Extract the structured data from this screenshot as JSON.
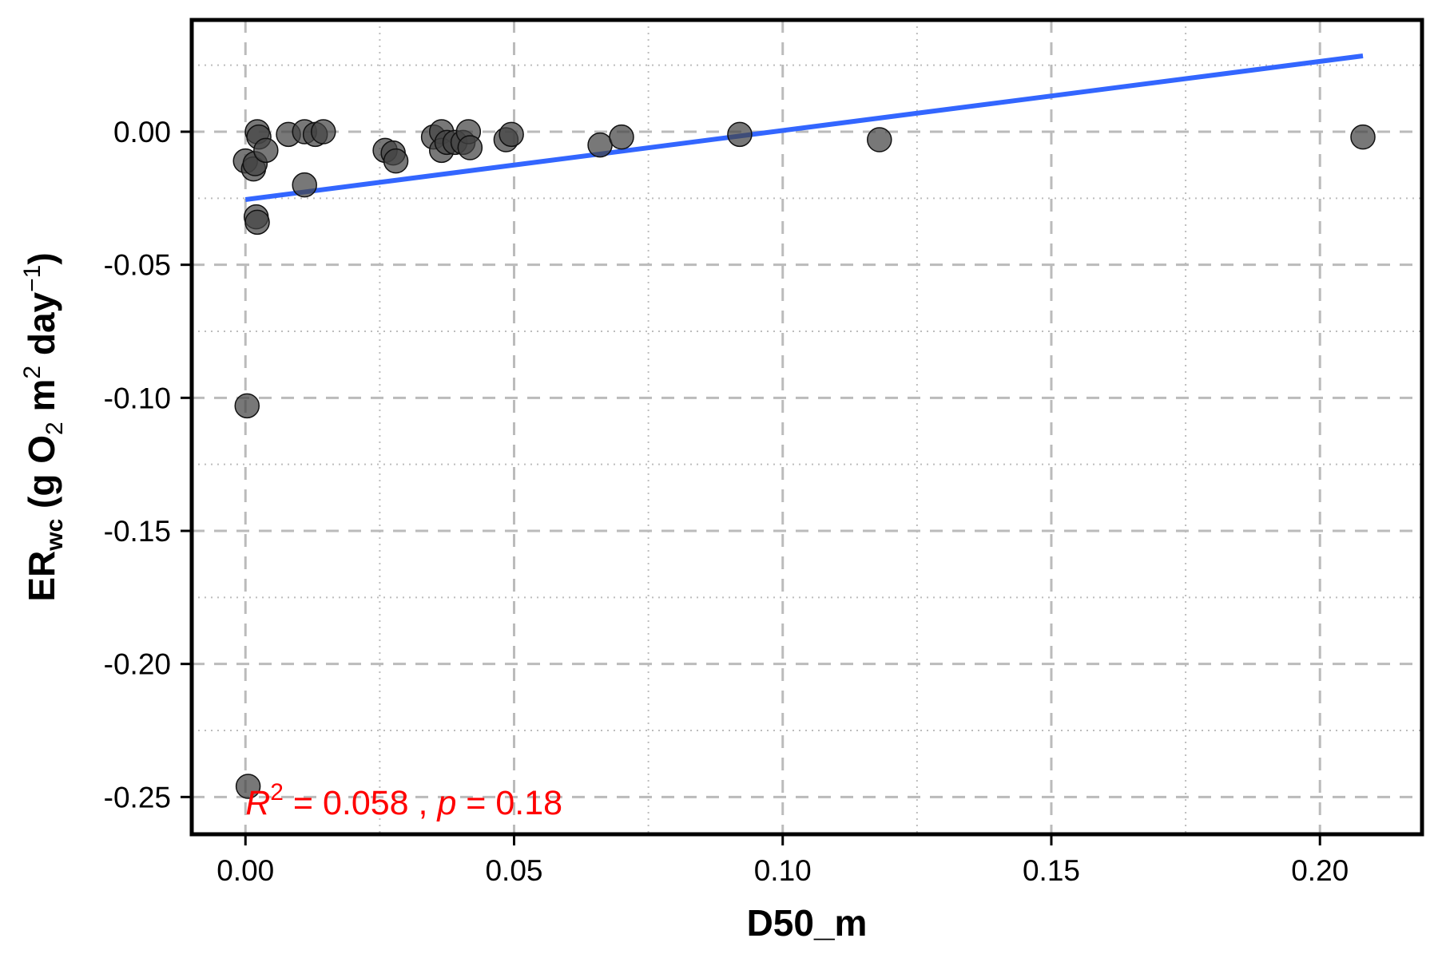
{
  "chart_data": {
    "type": "scatter",
    "xlabel": "D50_m",
    "ylabel": {
      "main": "ER",
      "subscript": "wc",
      "units_prefix": " (g O",
      "units_o2_subscript": "2",
      "units_m": " m",
      "units_m_superscript": "2",
      "units_day": " day",
      "units_day_superscript": "−1",
      "units_close": ")"
    },
    "xlim": [
      -0.01,
      0.219
    ],
    "ylim": [
      -0.264,
      0.042
    ],
    "x_ticks": [
      0.0,
      0.05,
      0.1,
      0.15,
      0.2
    ],
    "x_tick_labels": [
      "0.00",
      "0.05",
      "0.10",
      "0.15",
      "0.20"
    ],
    "y_ticks": [
      0.0,
      -0.05,
      -0.1,
      -0.15,
      -0.2,
      -0.25
    ],
    "y_tick_labels": [
      "0.00",
      "-0.05",
      "-0.10",
      "-0.15",
      "-0.20",
      "-0.25"
    ],
    "x_minor_ticks": [
      0.025,
      0.075,
      0.125,
      0.175
    ],
    "y_minor_ticks": [
      0.025,
      -0.025,
      -0.075,
      -0.125,
      -0.175,
      -0.225
    ],
    "grid": true,
    "points": [
      {
        "x": 0.0,
        "y": -0.011
      },
      {
        "x": 0.0003,
        "y": -0.103
      },
      {
        "x": 0.0005,
        "y": -0.246
      },
      {
        "x": 0.0015,
        "y": -0.014
      },
      {
        "x": 0.0018,
        "y": -0.012
      },
      {
        "x": 0.002,
        "y": -0.032
      },
      {
        "x": 0.0022,
        "y": -0.034
      },
      {
        "x": 0.0022,
        "y": 0.0
      },
      {
        "x": 0.0025,
        "y": -0.002
      },
      {
        "x": 0.0038,
        "y": -0.007
      },
      {
        "x": 0.008,
        "y": -0.001
      },
      {
        "x": 0.011,
        "y": 0.0
      },
      {
        "x": 0.011,
        "y": -0.02
      },
      {
        "x": 0.013,
        "y": -0.001
      },
      {
        "x": 0.0145,
        "y": 0.0
      },
      {
        "x": 0.026,
        "y": -0.007
      },
      {
        "x": 0.0275,
        "y": -0.008
      },
      {
        "x": 0.028,
        "y": -0.011
      },
      {
        "x": 0.035,
        "y": -0.002
      },
      {
        "x": 0.0365,
        "y": 0.0
      },
      {
        "x": 0.0365,
        "y": -0.007
      },
      {
        "x": 0.0375,
        "y": -0.004
      },
      {
        "x": 0.039,
        "y": -0.004
      },
      {
        "x": 0.0405,
        "y": -0.004
      },
      {
        "x": 0.0415,
        "y": 0.0
      },
      {
        "x": 0.0418,
        "y": -0.006
      },
      {
        "x": 0.0485,
        "y": -0.003
      },
      {
        "x": 0.0495,
        "y": -0.001
      },
      {
        "x": 0.066,
        "y": -0.005
      },
      {
        "x": 0.07,
        "y": -0.002
      },
      {
        "x": 0.092,
        "y": -0.001
      },
      {
        "x": 0.118,
        "y": -0.003
      },
      {
        "x": 0.208,
        "y": -0.002
      }
    ],
    "point_color": "#444444",
    "fit_line": {
      "x": [
        0.0,
        0.208
      ],
      "y": [
        -0.0255,
        0.0285
      ],
      "color": "#3366ff"
    },
    "annotation": {
      "r_label": "R",
      "r_sup": "2",
      "r_value": " = 0.058 , ",
      "p_label": "p",
      "p_value": " = 0.18",
      "color": "#ff0000"
    }
  }
}
